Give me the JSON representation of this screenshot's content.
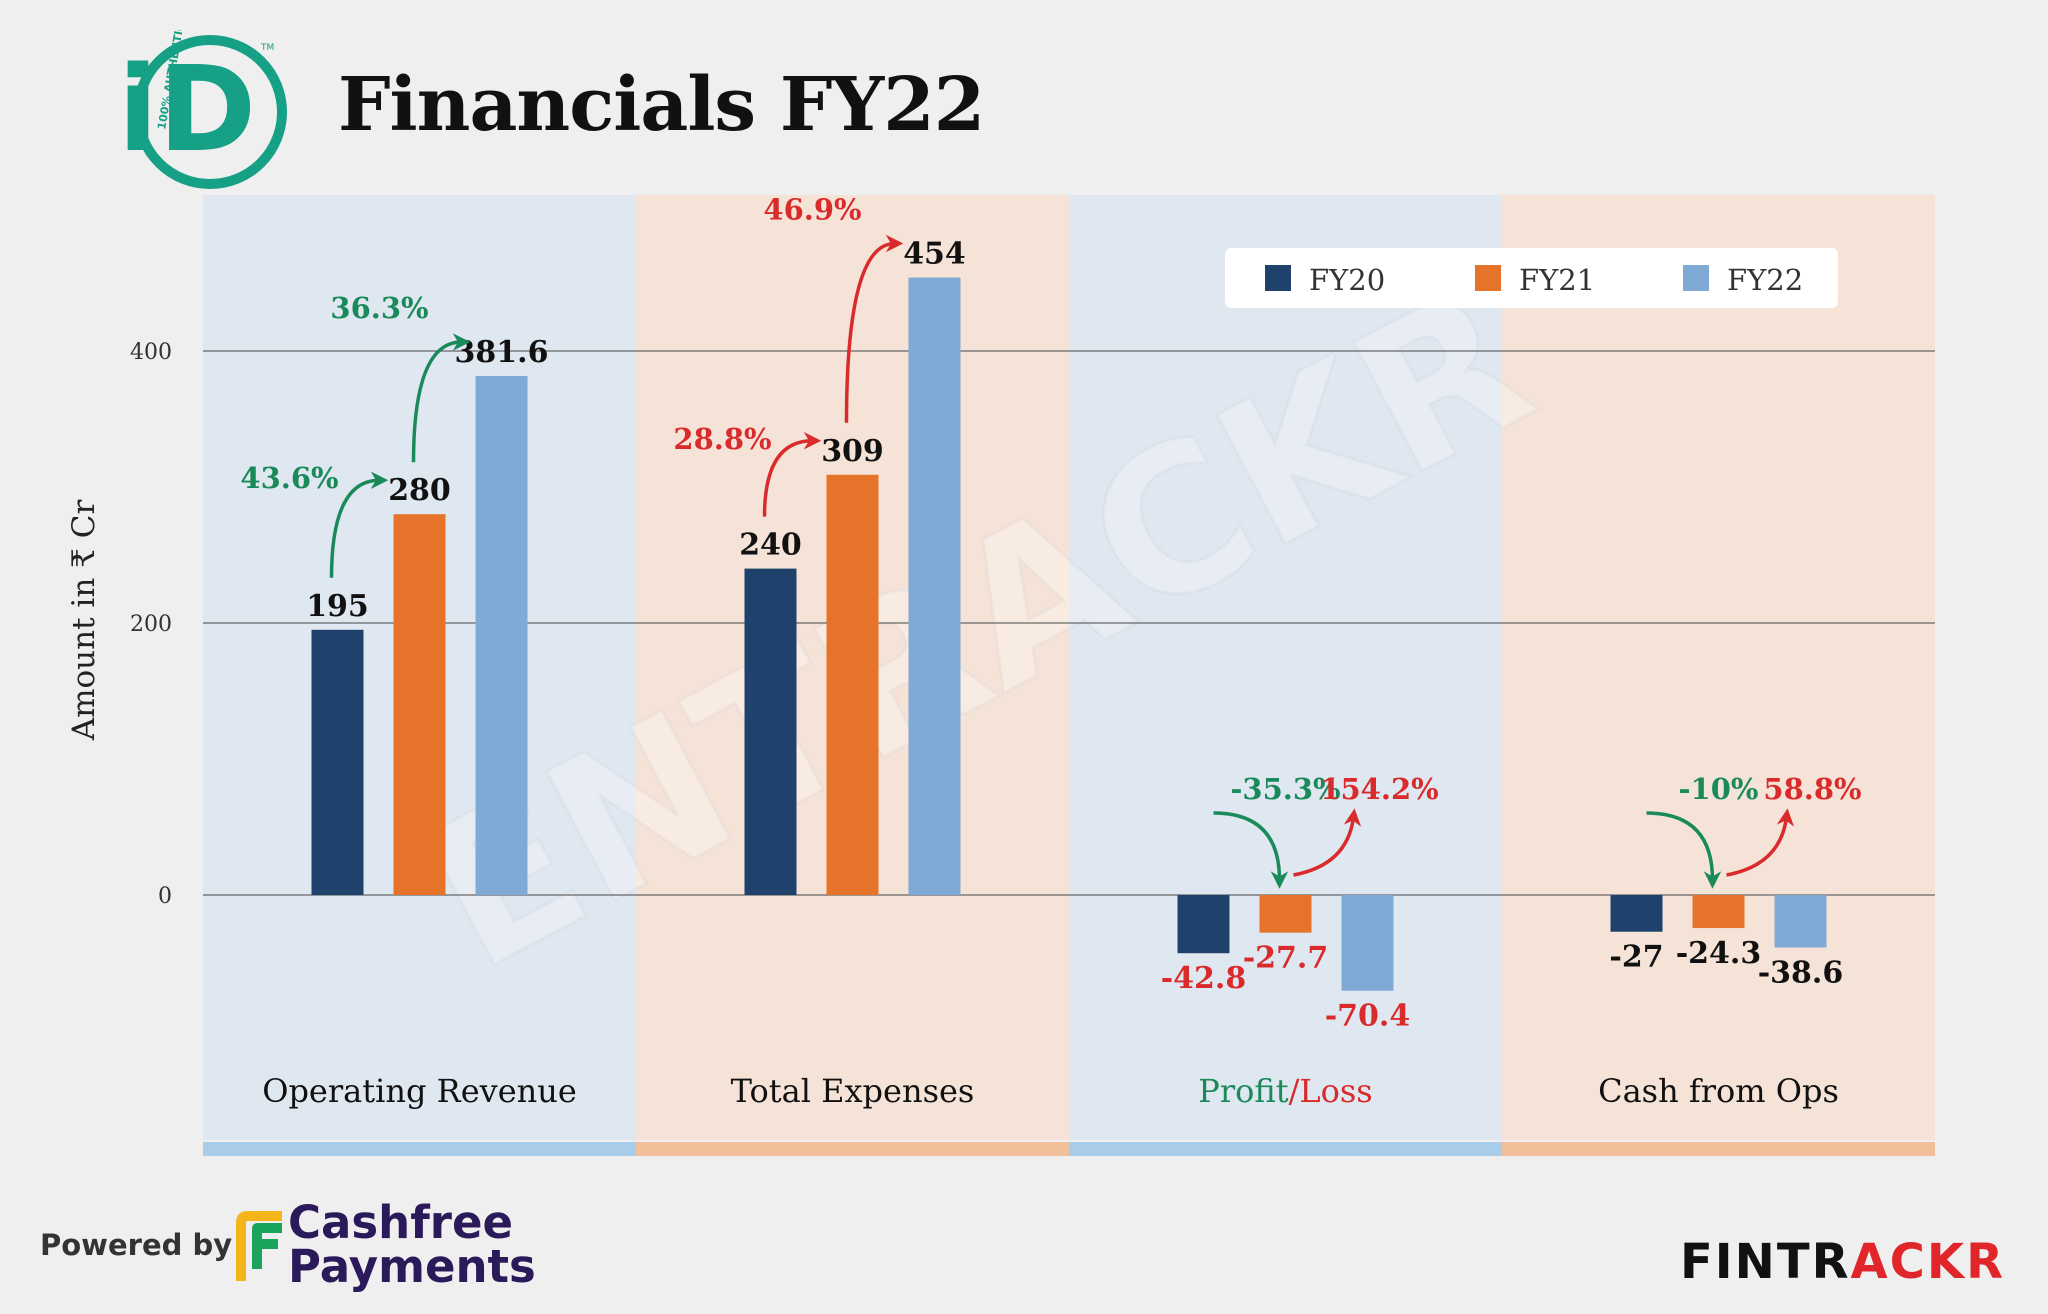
{
  "header": {
    "title": "Financials FY22",
    "logo_letters": "iD",
    "logo_ring_text": "100% AUTHENTIC",
    "logo_tm": "TM"
  },
  "footer": {
    "powered_by": "Powered by",
    "sponsor_line1": "Cashfree",
    "sponsor_line2": "Payments",
    "brand_part1": "FINTR",
    "brand_part2": "ACKR"
  },
  "watermark": "ENTRACKR",
  "colors": {
    "FY20": "#1f426c",
    "FY21": "#e5742a",
    "FY22": "#7faad6",
    "growth_good": "#1a8a5a",
    "growth_bad": "#d92b2b",
    "panel_blue": "#dfe7f0",
    "panel_orange": "#f6e3d7",
    "strip_blue": "#a9cde9",
    "strip_orange": "#f2bf9b"
  },
  "chart_data": {
    "type": "bar",
    "ylabel": "Amount in ₹ Cr",
    "yticks": [
      0,
      200,
      400
    ],
    "ylim": [
      -115,
      510
    ],
    "grid": true,
    "legend_position": "top-right",
    "legend": [
      "FY20",
      "FY21",
      "FY22"
    ],
    "series_names": [
      "FY20",
      "FY21",
      "FY22"
    ],
    "categories": [
      {
        "name": "Operating Revenue",
        "name_parts": [
          {
            "text": "Operating Revenue",
            "tone": "default"
          }
        ],
        "values": [
          195,
          280,
          381.6
        ],
        "value_labels": [
          "195",
          "280",
          "381.6"
        ],
        "value_label_tone": "default",
        "growth": [
          {
            "label": "43.6%",
            "from": 0,
            "to": 1,
            "tone": "good"
          },
          {
            "label": "36.3%",
            "from": 1,
            "to": 2,
            "tone": "good"
          }
        ]
      },
      {
        "name": "Total Expenses",
        "name_parts": [
          {
            "text": "Total Expenses",
            "tone": "default"
          }
        ],
        "values": [
          240,
          309,
          454
        ],
        "value_labels": [
          "240",
          "309",
          "454"
        ],
        "value_label_tone": "default",
        "growth": [
          {
            "label": "28.8%",
            "from": 0,
            "to": 1,
            "tone": "bad"
          },
          {
            "label": "46.9%",
            "from": 1,
            "to": 2,
            "tone": "bad"
          }
        ]
      },
      {
        "name": "Profit/Loss",
        "name_parts": [
          {
            "text": "Profit",
            "tone": "good"
          },
          {
            "text": "/",
            "tone": "bad"
          },
          {
            "text": "Loss",
            "tone": "bad"
          }
        ],
        "values": [
          -42.8,
          -27.7,
          -70.4
        ],
        "value_labels": [
          "-42.8",
          "-27.7",
          "-70.4"
        ],
        "value_label_tone": "bad",
        "growth": [
          {
            "label": "-35.3%",
            "from": 0,
            "to": 1,
            "tone": "good"
          },
          {
            "label": "154.2%",
            "from": 1,
            "to": 2,
            "tone": "bad"
          }
        ]
      },
      {
        "name": "Cash from Ops",
        "name_parts": [
          {
            "text": "Cash from Ops",
            "tone": "default"
          }
        ],
        "values": [
          -27,
          -24.3,
          -38.6
        ],
        "value_labels": [
          "-27",
          "-24.3",
          "-38.6"
        ],
        "value_label_tone": "default",
        "growth": [
          {
            "label": "-10%",
            "from": 0,
            "to": 1,
            "tone": "good"
          },
          {
            "label": "58.8%",
            "from": 1,
            "to": 2,
            "tone": "bad"
          }
        ]
      }
    ]
  }
}
